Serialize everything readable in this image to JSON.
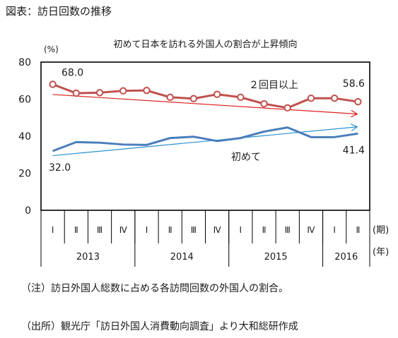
{
  "figure": {
    "title": "図表：訪日回数の推移",
    "note": "（注）訪日外国人総数に占める各訪問回数の外国人の割合。",
    "source": "（出所）観光庁「訪日外国人消費動向調査」より大和総研作成"
  },
  "chart_data": {
    "type": "line",
    "title": "初めて日本を訪れる外国人の割合が上昇傾向",
    "ylabel": "(%)",
    "ylim": [
      0,
      80
    ],
    "yticks": [
      0,
      20,
      40,
      60,
      80
    ],
    "grid": false,
    "quarters": [
      "Ⅰ",
      "Ⅱ",
      "Ⅲ",
      "Ⅳ",
      "Ⅰ",
      "Ⅱ",
      "Ⅲ",
      "Ⅳ",
      "Ⅰ",
      "Ⅱ",
      "Ⅲ",
      "Ⅳ",
      "Ⅰ",
      "Ⅱ"
    ],
    "years": [
      {
        "label": "2013",
        "quarters": 4
      },
      {
        "label": "2014",
        "quarters": 4
      },
      {
        "label": "2015",
        "quarters": 4
      },
      {
        "label": "2016",
        "quarters": 2
      }
    ],
    "x_period_label": "(期)",
    "x_year_label": "(年)",
    "series": [
      {
        "name": "２回目以上",
        "color": "#c0504d",
        "values": [
          68.0,
          63.2,
          63.5,
          64.5,
          64.7,
          61.0,
          60.3,
          62.6,
          61.0,
          57.5,
          55.3,
          60.5,
          60.5,
          58.6
        ],
        "trend": [
          62.5,
          52.0
        ],
        "trend_color": "#e02020"
      },
      {
        "name": "初めて",
        "color": "#4a7ebb",
        "values": [
          32.0,
          36.8,
          36.5,
          35.5,
          35.3,
          39.0,
          39.7,
          37.4,
          39.0,
          42.5,
          44.7,
          39.5,
          39.5,
          41.4
        ],
        "trend": [
          29.5,
          45.0
        ],
        "trend_color": "#2a90cf"
      }
    ],
    "data_labels": [
      {
        "series": 0,
        "index": 0,
        "text": "68.0"
      },
      {
        "series": 0,
        "index": 13,
        "text": "58.6"
      },
      {
        "series": 1,
        "index": 0,
        "text": "32.0"
      },
      {
        "series": 1,
        "index": 13,
        "text": "41.4"
      }
    ]
  }
}
